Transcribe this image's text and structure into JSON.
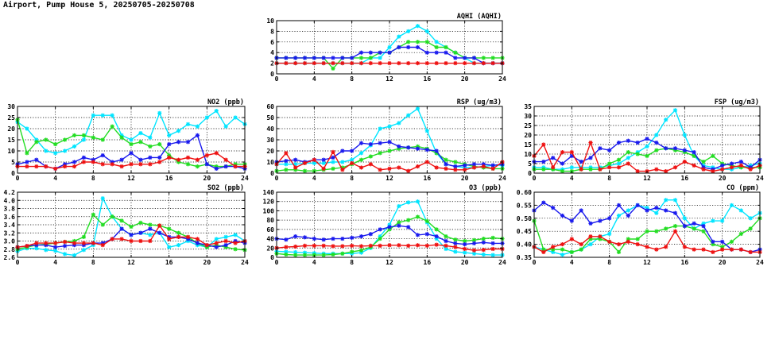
{
  "page": {
    "title": "Airport, Pump House 5, 20250705-20250708"
  },
  "series_colors": {
    "cyan": "#00e5ff",
    "green": "#22dd22",
    "blue": "#1a1aee",
    "red": "#ee1111"
  },
  "marker": "asterisk",
  "chart_data": [
    {
      "key": "aqhi",
      "type": "line",
      "title": "AQHI (AQHI)",
      "xlim": [
        0,
        24
      ],
      "xticks": [
        0,
        4,
        8,
        12,
        16,
        20,
        24
      ],
      "ylim": [
        0,
        10
      ],
      "yticks": [
        0,
        2,
        4,
        6,
        8,
        10
      ],
      "grid": true,
      "x": [
        0,
        1,
        2,
        3,
        4,
        5,
        6,
        7,
        8,
        9,
        10,
        11,
        12,
        13,
        14,
        15,
        16,
        17,
        18,
        19,
        20,
        21,
        22,
        23,
        24
      ],
      "series": [
        {
          "color": "cyan",
          "values": [
            2,
            2,
            2,
            2,
            2,
            2,
            2,
            2,
            2,
            2,
            3,
            3,
            5,
            7,
            8,
            9,
            8,
            6,
            5,
            4,
            3,
            2,
            2,
            2,
            2
          ]
        },
        {
          "color": "green",
          "values": [
            3,
            3,
            3,
            3,
            3,
            3,
            1,
            3,
            3,
            3,
            3,
            4,
            4,
            5,
            6,
            6,
            6,
            5,
            5,
            4,
            3,
            3,
            3,
            3,
            3
          ]
        },
        {
          "color": "blue",
          "values": [
            3,
            3,
            3,
            3,
            3,
            3,
            3,
            3,
            3,
            4,
            4,
            4,
            4,
            5,
            5,
            5,
            4,
            4,
            4,
            3,
            3,
            3,
            2,
            2,
            2
          ]
        },
        {
          "color": "red",
          "values": [
            2,
            2,
            2,
            2,
            2,
            2,
            2,
            2,
            2,
            2,
            2,
            2,
            2,
            2,
            2,
            2,
            2,
            2,
            2,
            2,
            2,
            2,
            2,
            2,
            2
          ]
        }
      ]
    },
    {
      "key": "no2",
      "type": "line",
      "title": "NO2 (ppb)",
      "xlim": [
        0,
        24
      ],
      "xticks": [
        0,
        4,
        8,
        12,
        16,
        20,
        24
      ],
      "ylim": [
        0,
        30
      ],
      "yticks": [
        0,
        5,
        10,
        15,
        20,
        25,
        30
      ],
      "grid": true,
      "x": [
        0,
        1,
        2,
        3,
        4,
        5,
        6,
        7,
        8,
        9,
        10,
        11,
        12,
        13,
        14,
        15,
        16,
        17,
        18,
        19,
        20,
        21,
        22,
        23,
        24
      ],
      "series": [
        {
          "color": "cyan",
          "values": [
            23,
            20,
            15,
            10,
            9,
            10,
            12,
            15,
            26,
            26,
            26,
            17,
            15,
            18,
            16,
            27,
            17,
            19,
            22,
            21,
            25,
            28,
            21,
            25,
            22
          ]
        },
        {
          "color": "green",
          "values": [
            24,
            9,
            14,
            15,
            13,
            15,
            17,
            17,
            16,
            15,
            21,
            16,
            13,
            14,
            12,
            13,
            8,
            5,
            4,
            3,
            4,
            3,
            3,
            4,
            4
          ]
        },
        {
          "color": "blue",
          "values": [
            4,
            5,
            6,
            3,
            2,
            4,
            5,
            7,
            6,
            8,
            5,
            6,
            9,
            6,
            7,
            7,
            13,
            14,
            14,
            17,
            4,
            2,
            3,
            3,
            2
          ]
        },
        {
          "color": "red",
          "values": [
            3,
            3,
            3,
            3,
            2,
            3,
            3,
            5,
            5,
            4,
            4,
            3,
            4,
            4,
            4,
            5,
            7,
            6,
            7,
            6,
            8,
            9,
            6,
            3,
            3
          ]
        }
      ]
    },
    {
      "key": "rsp",
      "type": "line",
      "title": "RSP (ug/m3)",
      "xlim": [
        0,
        24
      ],
      "xticks": [
        0,
        4,
        8,
        12,
        16,
        20,
        24
      ],
      "ylim": [
        0,
        60
      ],
      "yticks": [
        0,
        10,
        20,
        30,
        40,
        50,
        60
      ],
      "grid": true,
      "x": [
        0,
        1,
        2,
        3,
        4,
        5,
        6,
        7,
        8,
        9,
        10,
        11,
        12,
        13,
        14,
        15,
        16,
        17,
        18,
        19,
        20,
        21,
        22,
        23,
        24
      ],
      "series": [
        {
          "color": "cyan",
          "values": [
            8,
            8,
            8,
            9,
            9,
            9,
            10,
            10,
            12,
            18,
            25,
            40,
            42,
            45,
            52,
            58,
            38,
            18,
            8,
            6,
            5,
            5,
            6,
            7,
            7
          ]
        },
        {
          "color": "green",
          "values": [
            2,
            3,
            3,
            2,
            2,
            3,
            4,
            5,
            8,
            12,
            15,
            18,
            20,
            22,
            23,
            24,
            22,
            18,
            12,
            10,
            8,
            6,
            5,
            4,
            4
          ]
        },
        {
          "color": "blue",
          "values": [
            10,
            11,
            12,
            10,
            12,
            12,
            14,
            20,
            20,
            27,
            26,
            27,
            28,
            24,
            23,
            22,
            21,
            20,
            8,
            6,
            7,
            8,
            8,
            7,
            8
          ]
        },
        {
          "color": "red",
          "values": [
            8,
            18,
            5,
            9,
            12,
            4,
            19,
            3,
            9,
            5,
            8,
            3,
            4,
            5,
            2,
            6,
            10,
            5,
            4,
            3,
            3,
            5,
            6,
            4,
            10
          ]
        }
      ]
    },
    {
      "key": "fsp",
      "type": "line",
      "title": "FSP (ug/m3)",
      "xlim": [
        0,
        24
      ],
      "xticks": [
        0,
        4,
        8,
        12,
        16,
        20,
        24
      ],
      "ylim": [
        0,
        35
      ],
      "yticks": [
        0,
        5,
        10,
        15,
        20,
        25,
        30,
        35
      ],
      "grid": true,
      "x": [
        0,
        1,
        2,
        3,
        4,
        5,
        6,
        7,
        8,
        9,
        10,
        11,
        12,
        13,
        14,
        15,
        16,
        17,
        18,
        19,
        20,
        21,
        22,
        23,
        24
      ],
      "series": [
        {
          "color": "cyan",
          "values": [
            3,
            3,
            2,
            2,
            3,
            3,
            3,
            3,
            4,
            5,
            8,
            11,
            14,
            20,
            28,
            33,
            20,
            9,
            4,
            3,
            2,
            2,
            3,
            4,
            5
          ]
        },
        {
          "color": "green",
          "values": [
            2,
            2,
            2,
            1,
            1,
            2,
            2,
            2,
            5,
            7,
            11,
            10,
            9,
            12,
            13,
            12,
            11,
            9,
            6,
            9,
            5,
            4,
            3,
            3,
            3
          ]
        },
        {
          "color": "blue",
          "values": [
            6,
            6,
            8,
            5,
            9,
            6,
            8,
            13,
            12,
            16,
            17,
            16,
            18,
            16,
            13,
            13,
            12,
            11,
            3,
            2,
            4,
            5,
            6,
            3,
            7
          ]
        },
        {
          "color": "red",
          "values": [
            9,
            15,
            3,
            11,
            11,
            2,
            16,
            2,
            3,
            3,
            5,
            1,
            1,
            2,
            1,
            3,
            6,
            4,
            2,
            1,
            2,
            3,
            4,
            2,
            4
          ]
        }
      ]
    },
    {
      "key": "so2",
      "type": "line",
      "title": "SO2 (ppb)",
      "xlim": [
        0,
        24
      ],
      "xticks": [
        0,
        4,
        8,
        12,
        16,
        20,
        24
      ],
      "ylim": [
        2.6,
        4.2
      ],
      "yticks": [
        2.6,
        2.8,
        3.0,
        3.2,
        3.4,
        3.6,
        3.8,
        4.0,
        4.2
      ],
      "grid": true,
      "x": [
        0,
        1,
        2,
        3,
        4,
        5,
        6,
        7,
        8,
        9,
        10,
        11,
        12,
        13,
        14,
        15,
        16,
        17,
        18,
        19,
        20,
        21,
        22,
        23,
        24
      ],
      "series": [
        {
          "color": "cyan",
          "values": [
            2.75,
            2.82,
            2.82,
            2.78,
            2.76,
            2.68,
            2.65,
            2.78,
            2.9,
            4.05,
            3.6,
            3.3,
            3.15,
            3.2,
            3.15,
            3.2,
            2.85,
            2.9,
            3.0,
            2.9,
            2.85,
            3.05,
            3.1,
            3.15,
            3.0
          ]
        },
        {
          "color": "green",
          "values": [
            2.8,
            2.85,
            2.9,
            2.92,
            2.95,
            2.98,
            3.0,
            3.1,
            3.65,
            3.4,
            3.6,
            3.5,
            3.35,
            3.45,
            3.4,
            3.38,
            3.3,
            3.2,
            3.1,
            2.95,
            2.85,
            2.9,
            2.85,
            2.8,
            2.78
          ]
        },
        {
          "color": "blue",
          "values": [
            2.85,
            2.88,
            2.9,
            2.9,
            2.85,
            2.88,
            2.9,
            2.9,
            2.95,
            2.95,
            3.05,
            3.3,
            3.15,
            3.2,
            3.3,
            3.2,
            3.1,
            3.1,
            3.05,
            2.95,
            2.9,
            2.85,
            2.9,
            3.0,
            2.95
          ]
        },
        {
          "color": "red",
          "values": [
            2.85,
            2.88,
            2.95,
            2.95,
            2.95,
            2.98,
            2.95,
            2.95,
            2.95,
            2.9,
            3.05,
            3.05,
            3.0,
            3.0,
            3.0,
            3.38,
            3.05,
            3.1,
            3.1,
            3.05,
            2.9,
            2.95,
            3.0,
            2.95,
            3.0
          ]
        }
      ]
    },
    {
      "key": "o3",
      "type": "line",
      "title": "O3 (ppb)",
      "xlim": [
        0,
        24
      ],
      "xticks": [
        0,
        4,
        8,
        12,
        16,
        20,
        24
      ],
      "ylim": [
        0,
        140
      ],
      "yticks": [
        0,
        20,
        40,
        60,
        80,
        100,
        120,
        140
      ],
      "grid": true,
      "x": [
        0,
        1,
        2,
        3,
        4,
        5,
        6,
        7,
        8,
        9,
        10,
        11,
        12,
        13,
        14,
        15,
        16,
        17,
        18,
        19,
        20,
        21,
        22,
        23,
        24
      ],
      "series": [
        {
          "color": "cyan",
          "values": [
            13,
            12,
            11,
            10,
            9,
            8,
            8,
            8,
            8,
            10,
            20,
            45,
            70,
            110,
            118,
            120,
            75,
            40,
            18,
            12,
            10,
            8,
            6,
            5,
            5
          ]
        },
        {
          "color": "green",
          "values": [
            8,
            6,
            5,
            5,
            5,
            5,
            6,
            8,
            12,
            15,
            22,
            40,
            60,
            75,
            80,
            87,
            78,
            60,
            45,
            38,
            35,
            37,
            40,
            42,
            40
          ]
        },
        {
          "color": "blue",
          "values": [
            40,
            38,
            45,
            43,
            40,
            38,
            40,
            40,
            42,
            45,
            50,
            60,
            65,
            68,
            65,
            48,
            50,
            45,
            35,
            30,
            28,
            30,
            32,
            30,
            30
          ]
        },
        {
          "color": "red",
          "values": [
            20,
            22,
            23,
            25,
            25,
            25,
            24,
            24,
            25,
            24,
            25,
            25,
            26,
            26,
            25,
            26,
            25,
            27,
            25,
            22,
            18,
            15,
            16,
            18,
            18
          ]
        }
      ]
    },
    {
      "key": "co",
      "type": "line",
      "title": "CO (ppm)",
      "xlim": [
        0,
        24
      ],
      "xticks": [
        0,
        4,
        8,
        12,
        16,
        20,
        24
      ],
      "ylim": [
        0.35,
        0.6
      ],
      "yticks": [
        0.35,
        0.4,
        0.45,
        0.5,
        0.55,
        0.6
      ],
      "grid": true,
      "x": [
        0,
        1,
        2,
        3,
        4,
        5,
        6,
        7,
        8,
        9,
        10,
        11,
        12,
        13,
        14,
        15,
        16,
        17,
        18,
        19,
        20,
        21,
        22,
        23,
        24
      ],
      "series": [
        {
          "color": "cyan",
          "values": [
            0.39,
            0.38,
            0.37,
            0.36,
            0.37,
            0.38,
            0.4,
            0.43,
            0.44,
            0.51,
            0.53,
            0.55,
            0.54,
            0.52,
            0.57,
            0.57,
            0.5,
            0.46,
            0.48,
            0.49,
            0.49,
            0.55,
            0.53,
            0.5,
            0.52
          ]
        },
        {
          "color": "green",
          "values": [
            0.49,
            0.38,
            0.38,
            0.38,
            0.37,
            0.38,
            0.42,
            0.42,
            0.41,
            0.37,
            0.42,
            0.42,
            0.45,
            0.45,
            0.46,
            0.47,
            0.47,
            0.46,
            0.45,
            0.4,
            0.39,
            0.41,
            0.44,
            0.46,
            0.5
          ]
        },
        {
          "color": "blue",
          "values": [
            0.53,
            0.56,
            0.54,
            0.51,
            0.49,
            0.53,
            0.48,
            0.49,
            0.5,
            0.55,
            0.51,
            0.55,
            0.53,
            0.54,
            0.53,
            0.52,
            0.47,
            0.48,
            0.47,
            0.41,
            0.41,
            0.38,
            0.38,
            0.37,
            0.38
          ]
        },
        {
          "color": "red",
          "values": [
            0.39,
            0.37,
            0.39,
            0.4,
            0.42,
            0.4,
            0.43,
            0.43,
            0.41,
            0.4,
            0.41,
            0.4,
            0.39,
            0.38,
            0.39,
            0.45,
            0.39,
            0.38,
            0.38,
            0.37,
            0.38,
            0.38,
            0.38,
            0.37,
            0.37
          ]
        }
      ]
    }
  ]
}
